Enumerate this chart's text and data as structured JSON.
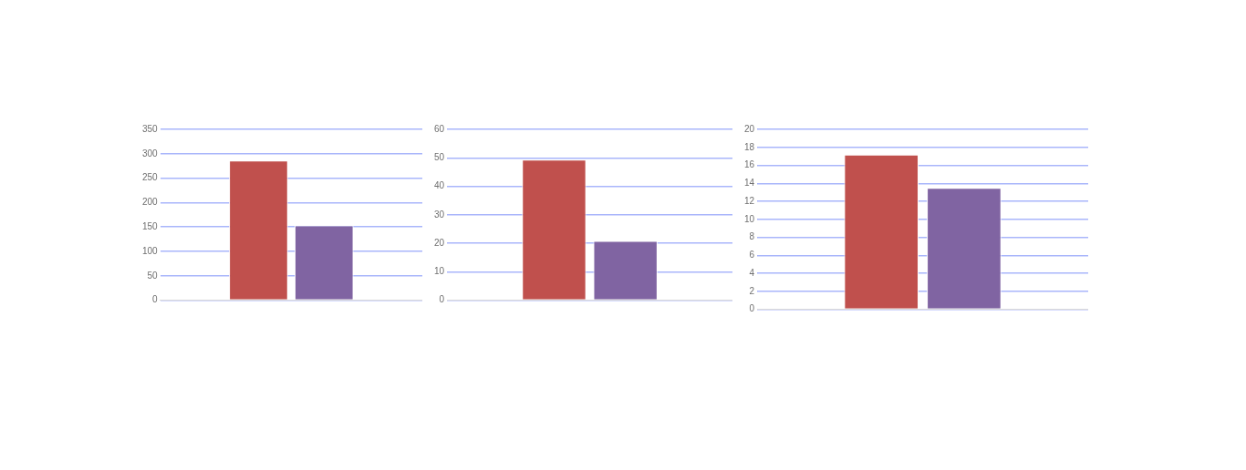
{
  "chart_data": [
    {
      "type": "bar",
      "categories": [
        null
      ],
      "series": [
        {
          "color": "#c0504d",
          "values": [
            286
          ]
        },
        {
          "color": "#8064a2",
          "values": [
            153
          ]
        }
      ],
      "ylim": [
        0,
        350
      ],
      "yticks": [
        0,
        50,
        100,
        150,
        200,
        250,
        300,
        350
      ],
      "grid": "y"
    },
    {
      "type": "bar",
      "categories": [
        null
      ],
      "series": [
        {
          "color": "#c0504d",
          "values": [
            49.4
          ]
        },
        {
          "color": "#8064a2",
          "values": [
            20.8
          ]
        }
      ],
      "ylim": [
        0,
        60
      ],
      "yticks": [
        0,
        10,
        20,
        30,
        40,
        50,
        60
      ],
      "grid": "y"
    },
    {
      "type": "bar",
      "categories": [
        null
      ],
      "series": [
        {
          "color": "#c0504d",
          "values": [
            17.2
          ]
        },
        {
          "color": "#8064a2",
          "values": [
            13.5
          ]
        }
      ],
      "ylim": [
        0,
        20
      ],
      "yticks": [
        0,
        2,
        4,
        6,
        8,
        10,
        12,
        14,
        16,
        18,
        20
      ],
      "grid": "y"
    }
  ]
}
